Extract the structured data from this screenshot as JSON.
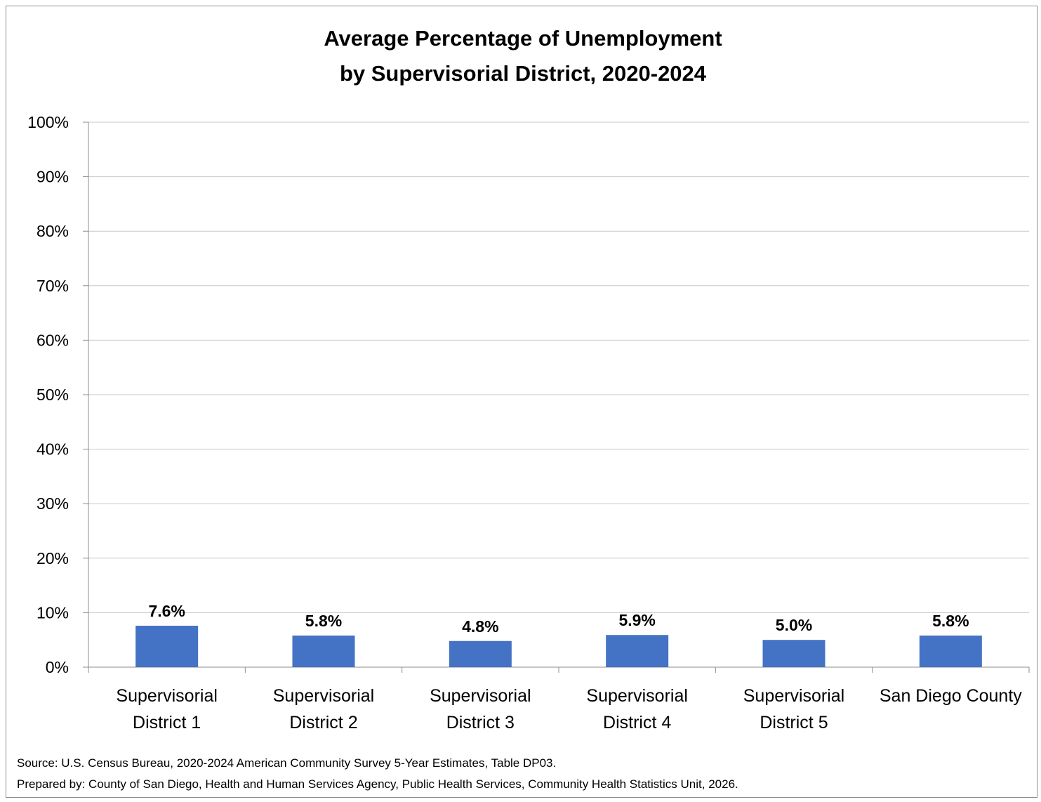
{
  "chart_data": {
    "type": "bar",
    "title_line1": "Average Percentage of Unemployment",
    "title_line2": "by Supervisorial District, 2020-2024",
    "categories": [
      [
        "Supervisorial",
        "District 1"
      ],
      [
        "Supervisorial",
        "District 2"
      ],
      [
        "Supervisorial",
        "District 3"
      ],
      [
        "Supervisorial",
        "District 4"
      ],
      [
        "Supervisorial",
        "District 5"
      ],
      [
        "San Diego County"
      ]
    ],
    "values": [
      7.6,
      5.8,
      4.8,
      5.9,
      5.0,
      5.8
    ],
    "data_labels": [
      "7.6%",
      "5.8%",
      "4.8%",
      "5.9%",
      "5.0%",
      "5.8%"
    ],
    "ylim": [
      0,
      100
    ],
    "yticks": [
      0,
      10,
      20,
      30,
      40,
      50,
      60,
      70,
      80,
      90,
      100
    ],
    "ytick_labels": [
      "0%",
      "10%",
      "20%",
      "30%",
      "40%",
      "50%",
      "60%",
      "70%",
      "80%",
      "90%",
      "100%"
    ],
    "grid": true,
    "bar_color": "#4472C4",
    "grid_color": "#C8C8C8"
  },
  "notes": {
    "source": "Source: U.S. Census Bureau, 2020-2024 American Community Survey 5-Year Estimates, Table DP03.",
    "prepared_by": "Prepared by: County of San Diego, Health and Human Services Agency, Public Health Services, Community Health Statistics Unit, 2026."
  }
}
